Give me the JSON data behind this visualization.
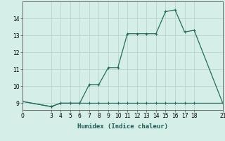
{
  "xlabel": "Humidex (Indice chaleur)",
  "line1_x": [
    0,
    3,
    4,
    5,
    6,
    7,
    8,
    9,
    10,
    11,
    12,
    13,
    14,
    15,
    16,
    17,
    18,
    21
  ],
  "line1_y": [
    9.1,
    8.8,
    9.0,
    9.0,
    9.0,
    10.1,
    10.1,
    11.1,
    11.1,
    13.1,
    13.1,
    13.1,
    13.1,
    14.4,
    14.5,
    13.2,
    13.3,
    9.0
  ],
  "line2_x": [
    0,
    3,
    4,
    5,
    6,
    7,
    8,
    9,
    10,
    11,
    12,
    13,
    14,
    15,
    16,
    17,
    18,
    21
  ],
  "line2_y": [
    9.1,
    8.8,
    9.0,
    9.0,
    9.0,
    9.0,
    9.0,
    9.0,
    9.0,
    9.0,
    9.0,
    9.0,
    9.0,
    9.0,
    9.0,
    9.0,
    9.0,
    9.0
  ],
  "line_color": "#236b5e",
  "bg_color": "#d5eee8",
  "grid_color": "#c0d8d0",
  "xlim": [
    0,
    21
  ],
  "ylim": [
    8.6,
    15.0
  ],
  "yticks": [
    9,
    10,
    11,
    12,
    13,
    14
  ],
  "xticks": [
    0,
    3,
    4,
    5,
    6,
    7,
    8,
    9,
    10,
    11,
    12,
    13,
    14,
    15,
    16,
    17,
    18,
    21
  ],
  "tick_labelsize": 5.5,
  "xlabel_fontsize": 6.5
}
